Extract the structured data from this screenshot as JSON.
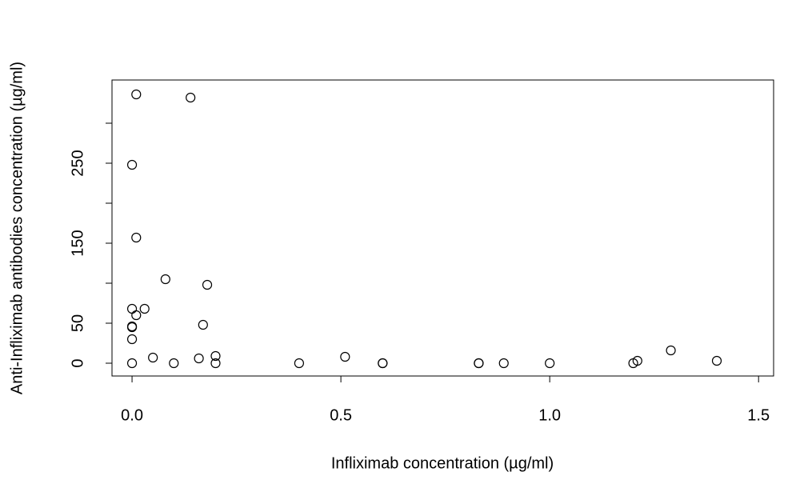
{
  "chart_data": {
    "type": "scatter",
    "xlabel": "Infliximab concentration (µg/ml)",
    "ylabel": "Anti-Infliximab antibodies concentration (µg/ml)",
    "x": [
      0.01,
      0.14,
      0,
      0.01,
      0.08,
      0.18,
      0,
      0.03,
      0.01,
      0,
      0,
      0.17,
      0,
      0.05,
      0.16,
      0.2,
      0.2,
      0,
      0.1,
      0.4,
      0.51,
      0.6,
      0.6,
      0.83,
      0.83,
      0.89,
      1.0,
      1.2,
      1.21,
      1.29,
      1.4
    ],
    "values": [
      336,
      332,
      248,
      157,
      105,
      98,
      68,
      68,
      60,
      46,
      45,
      48,
      30,
      7,
      6,
      9,
      0,
      0,
      0,
      0,
      8,
      0,
      0,
      0,
      0,
      0,
      0,
      0,
      3,
      16,
      3
    ],
    "color": "#000000",
    "xlim": [
      -0.048,
      1.536
    ],
    "ylim": [
      -16,
      354
    ],
    "xticks": [
      {
        "value": 0,
        "label": "0.0"
      },
      0.5,
      {
        "value": 1,
        "label": "1.0"
      },
      1.5
    ],
    "yticks": [
      0,
      50,
      {
        "value": 100,
        "label": null
      },
      150,
      {
        "value": 200,
        "label": null
      },
      250,
      {
        "value": 300,
        "label": null
      }
    ]
  }
}
